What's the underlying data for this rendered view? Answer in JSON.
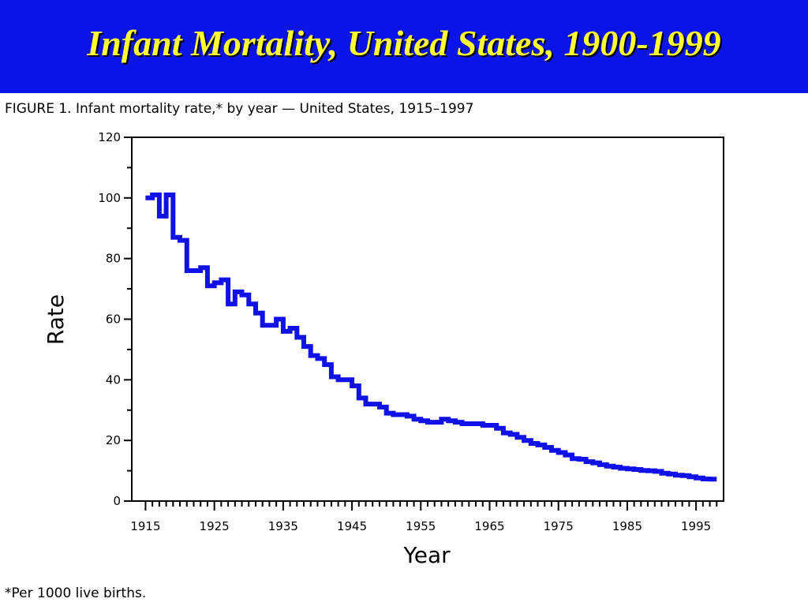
{
  "slide": {
    "title": "Infant Mortality, United States, 1900-1999",
    "figure_caption": "FIGURE 1. Infant mortality rate,* by year — United States, 1915–1997",
    "footnote": "*Per 1000 live births."
  },
  "colors": {
    "banner": "#0a14e6",
    "title": "#ffff33",
    "line": "#1010e8"
  },
  "chart_data": {
    "type": "line",
    "xlabel": "Year",
    "ylabel": "Rate",
    "xlim": [
      1913,
      1999
    ],
    "ylim": [
      0,
      120
    ],
    "x_ticks": [
      1915,
      1925,
      1935,
      1945,
      1955,
      1965,
      1975,
      1985,
      1995
    ],
    "y_ticks": [
      0,
      20,
      40,
      60,
      80,
      100,
      120
    ],
    "grid": false,
    "series": [
      {
        "x": [
          1915,
          1916,
          1917,
          1918,
          1919,
          1920,
          1921,
          1922,
          1923,
          1924,
          1925,
          1926,
          1927,
          1928,
          1929,
          1930,
          1931,
          1932,
          1933,
          1934,
          1935,
          1936,
          1937,
          1938,
          1939,
          1940,
          1941,
          1942,
          1943,
          1944,
          1945,
          1946,
          1947,
          1948,
          1949,
          1950,
          1951,
          1952,
          1953,
          1954,
          1955,
          1956,
          1957,
          1958,
          1959,
          1960,
          1961,
          1962,
          1963,
          1964,
          1965,
          1966,
          1967,
          1968,
          1969,
          1970,
          1971,
          1972,
          1973,
          1974,
          1975,
          1976,
          1977,
          1978,
          1979,
          1980,
          1981,
          1982,
          1983,
          1984,
          1985,
          1986,
          1987,
          1988,
          1989,
          1990,
          1991,
          1992,
          1993,
          1994,
          1995,
          1996,
          1997
        ],
        "values": [
          100,
          101,
          94,
          101,
          87,
          86,
          76,
          76,
          77,
          71,
          72,
          73,
          65,
          69,
          68,
          65,
          62,
          58,
          58,
          60,
          56,
          57,
          54,
          51,
          48,
          47,
          45,
          41,
          40,
          40,
          38,
          34,
          32,
          32,
          31,
          29,
          28.5,
          28.5,
          28,
          27,
          26.5,
          26,
          26,
          27,
          26.5,
          26,
          25.5,
          25.5,
          25.5,
          25,
          25,
          24,
          22.5,
          22,
          21,
          20,
          19,
          18.5,
          17.7,
          16.7,
          16,
          15.2,
          14,
          13.8,
          13,
          12.6,
          12,
          11.5,
          11.2,
          10.8,
          10.6,
          10.4,
          10.1,
          10,
          9.8,
          9.2,
          8.9,
          8.5,
          8.4,
          8,
          7.6,
          7.3,
          7.2
        ]
      }
    ]
  }
}
